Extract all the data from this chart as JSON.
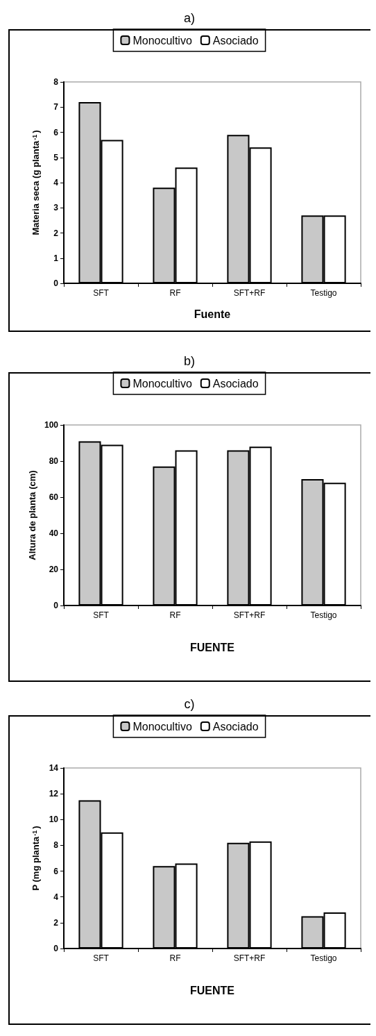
{
  "chart_data": [
    {
      "type": "bar",
      "title": "a)",
      "xlabel": "Fuente",
      "ylabel": "Materia seca (g planta$^{-1}$)",
      "categories": [
        "SFT",
        "RF",
        "SFT+RF",
        "Testigo"
      ],
      "series": [
        {
          "name": "Monocultivo",
          "color": "#c8c8c8",
          "values": [
            7.2,
            3.8,
            5.9,
            2.7
          ]
        },
        {
          "name": "Asociado",
          "color": "#ffffff",
          "values": [
            5.7,
            4.6,
            5.4,
            2.7
          ]
        }
      ],
      "ylim": [
        0,
        8
      ],
      "yticks": [
        0,
        1,
        2,
        3,
        4,
        5,
        6,
        7,
        8
      ],
      "legend": "top",
      "grid": false
    },
    {
      "type": "bar",
      "title": "b)",
      "xlabel": "FUENTE",
      "ylabel": "Altura de planta (cm)",
      "categories": [
        "SFT",
        "RF",
        "SFT+RF",
        "Testigo"
      ],
      "series": [
        {
          "name": "Monocultivo",
          "color": "#c8c8c8",
          "values": [
            91,
            77,
            86,
            70
          ]
        },
        {
          "name": "Asociado",
          "color": "#ffffff",
          "values": [
            89,
            86,
            88,
            68
          ]
        }
      ],
      "ylim": [
        0,
        100
      ],
      "yticks": [
        0,
        20,
        40,
        60,
        80,
        100
      ],
      "legend": "top",
      "grid": false
    },
    {
      "type": "bar",
      "title": "c)",
      "xlabel": "FUENTE",
      "ylabel": "P (mg planta$^{-1}$)",
      "categories": [
        "SFT",
        "RF",
        "SFT+RF",
        "Testigo"
      ],
      "series": [
        {
          "name": "Monocultivo",
          "color": "#c8c8c8",
          "values": [
            11.5,
            6.4,
            8.2,
            2.5
          ]
        },
        {
          "name": "Asociado",
          "color": "#ffffff",
          "values": [
            9.0,
            6.6,
            8.3,
            2.8
          ]
        }
      ],
      "ylim": [
        0,
        14
      ],
      "yticks": [
        0,
        2,
        4,
        6,
        8,
        10,
        12,
        14
      ],
      "legend": "top",
      "grid": false
    }
  ]
}
